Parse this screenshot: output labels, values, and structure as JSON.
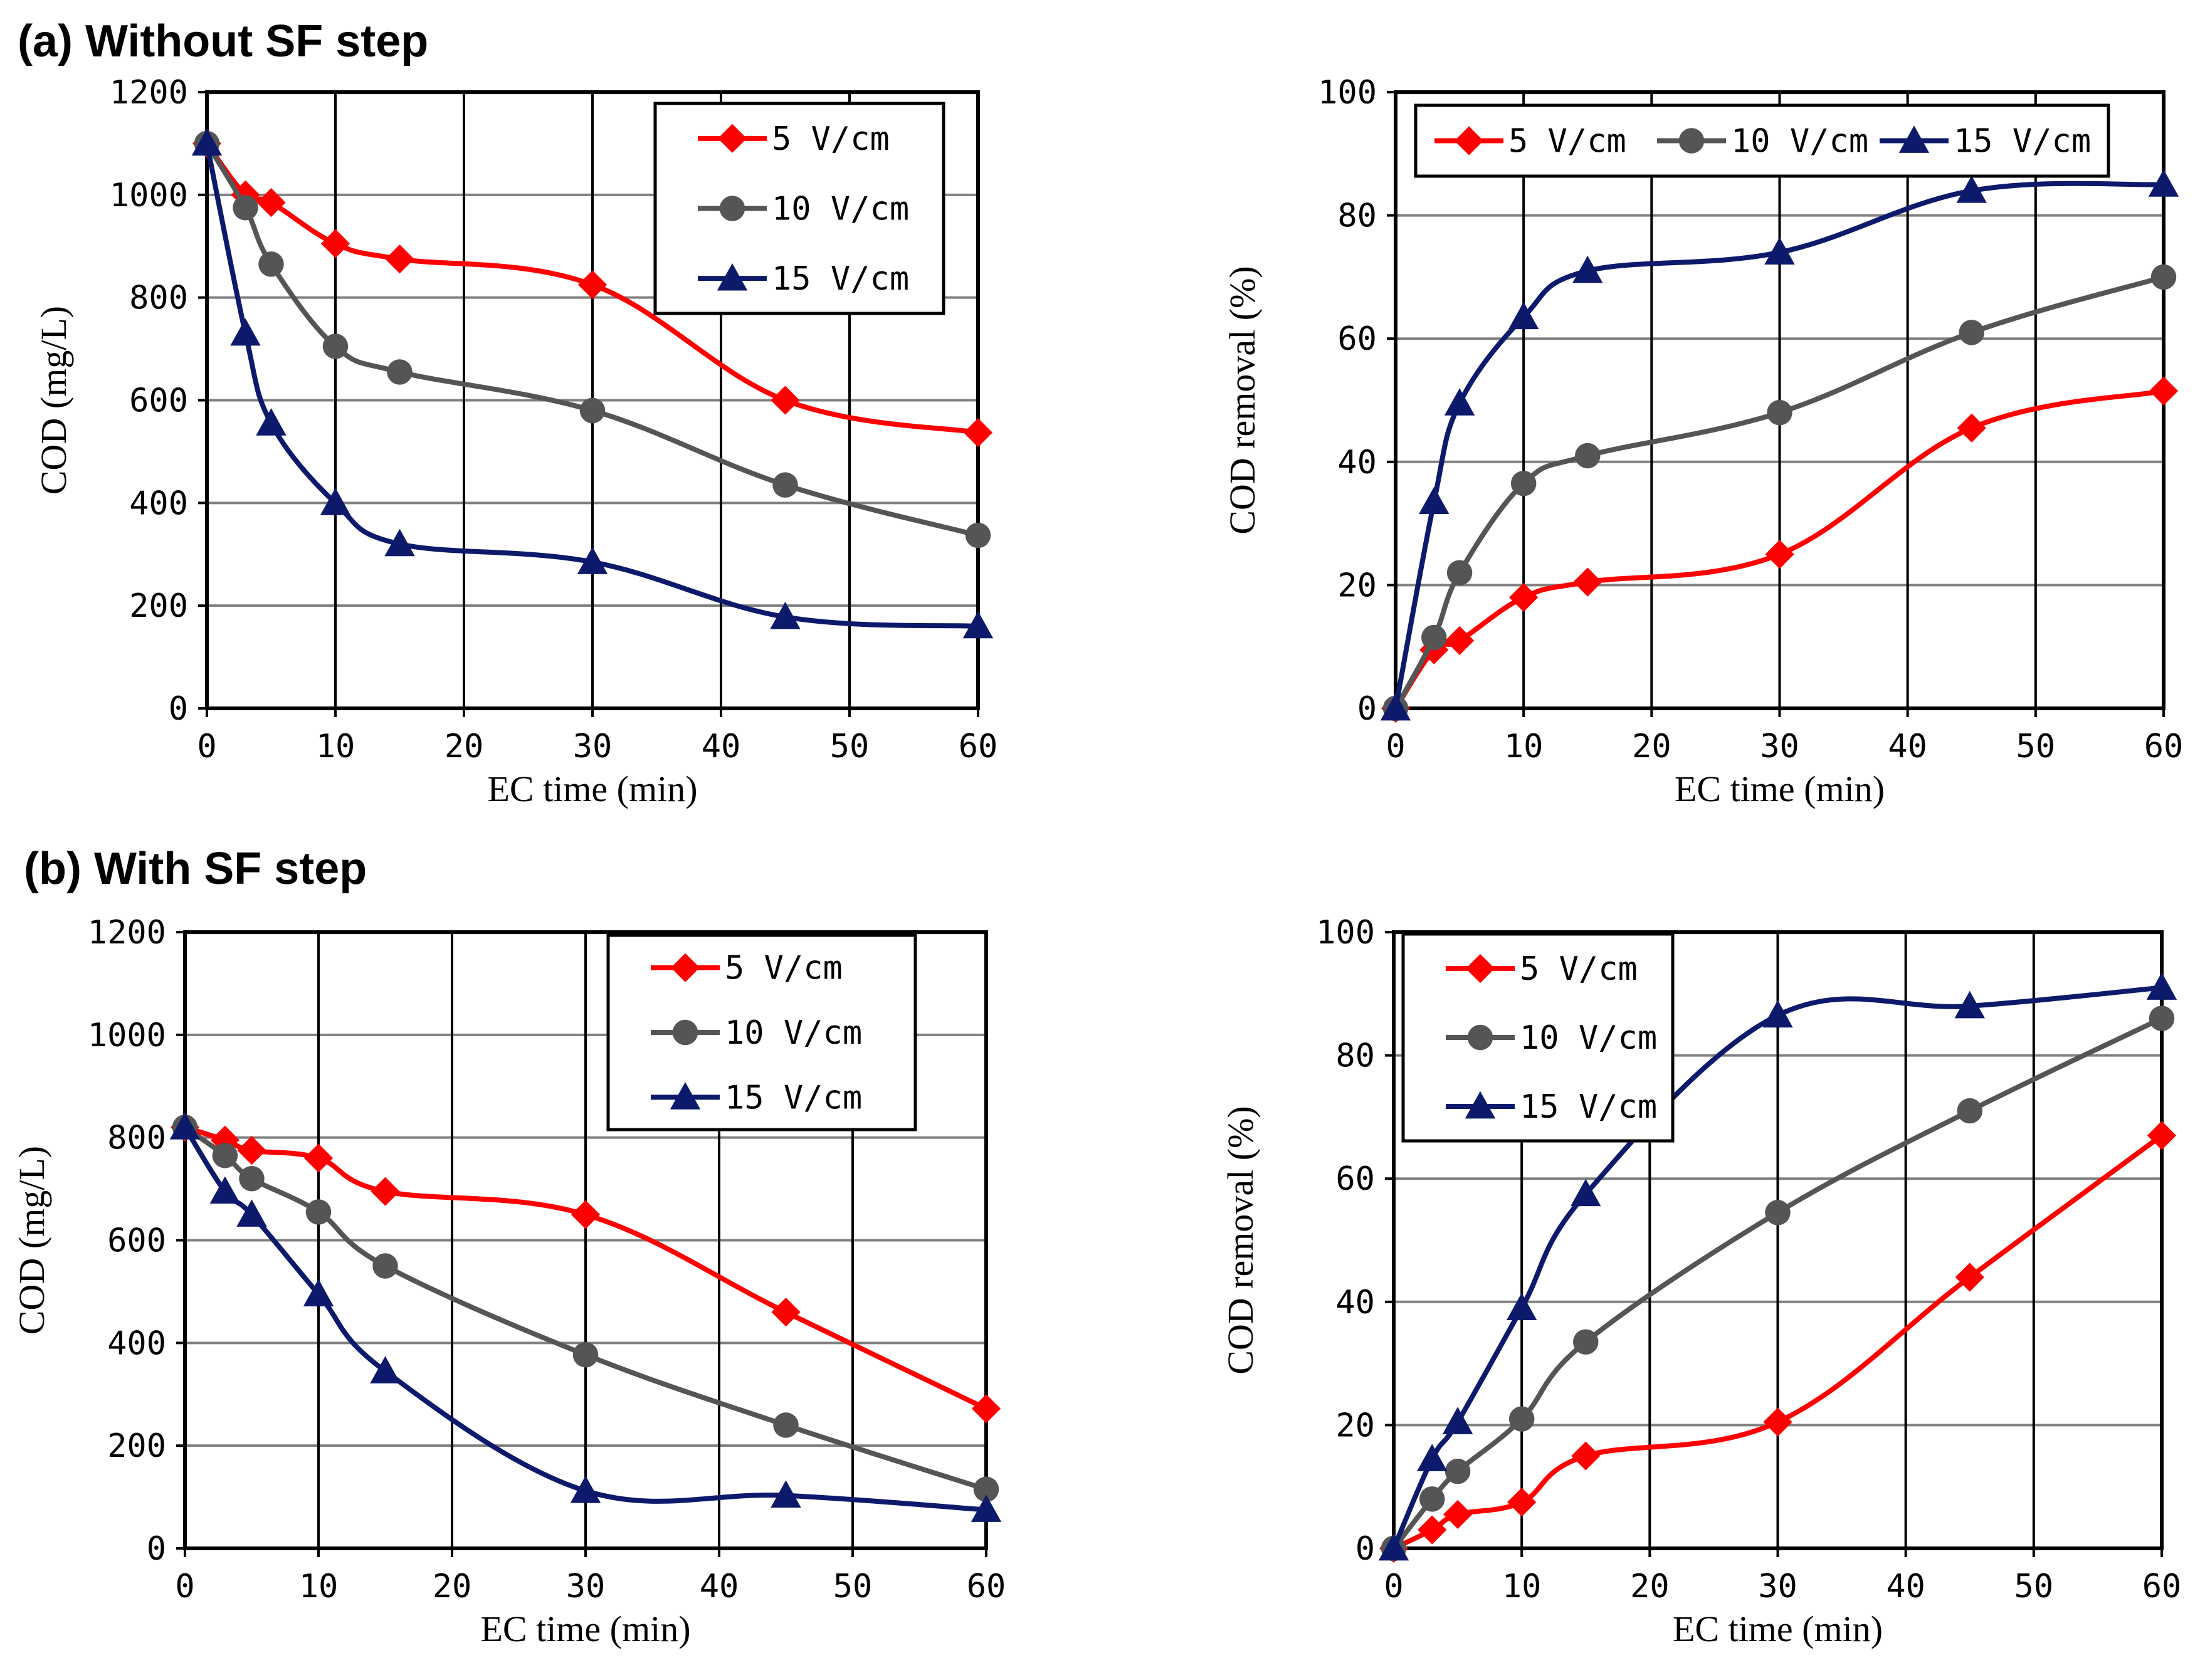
{
  "figure": {
    "section_a_title": "(a) Without SF step",
    "section_b_title": "(b) With SF step"
  },
  "colors": {
    "series_5": "#ff0000",
    "series_10": "#555555",
    "series_15": "#0d1a6b",
    "grid": "#808080",
    "frame": "#000000"
  },
  "chart_data": [
    {
      "id": "a-cod",
      "type": "line",
      "xlabel": "EC time (min)",
      "ylabel": "COD (mg/L)",
      "xlim": [
        0,
        60
      ],
      "ylim": [
        0,
        1200
      ],
      "xticks": [
        0,
        10,
        20,
        30,
        40,
        50,
        60
      ],
      "yticks": [
        0,
        200,
        400,
        600,
        800,
        1000,
        1200
      ],
      "grid": "both",
      "legend_position": "top-right",
      "legend_layout": "vertical",
      "series": [
        {
          "name": "5 V/cm",
          "marker": "diamond",
          "color": "#ff0000",
          "x": [
            0,
            3,
            5,
            10,
            15,
            30,
            45,
            60
          ],
          "y": [
            1100,
            1000,
            985,
            905,
            875,
            825,
            600,
            537
          ]
        },
        {
          "name": "10 V/cm",
          "marker": "circle",
          "color": "#555555",
          "x": [
            0,
            3,
            5,
            10,
            15,
            30,
            45,
            60
          ],
          "y": [
            1100,
            975,
            865,
            705,
            655,
            580,
            435,
            337
          ]
        },
        {
          "name": "15 V/cm",
          "marker": "triangle",
          "color": "#0d1a6b",
          "x": [
            0,
            3,
            5,
            10,
            15,
            30,
            45,
            60
          ],
          "y": [
            1100,
            730,
            555,
            400,
            320,
            285,
            178,
            160
          ]
        }
      ]
    },
    {
      "id": "a-removal",
      "type": "line",
      "xlabel": "EC time (min)",
      "ylabel": "COD removal (%)",
      "xlim": [
        0,
        60
      ],
      "ylim": [
        0,
        100
      ],
      "xticks": [
        0,
        10,
        20,
        30,
        40,
        50,
        60
      ],
      "yticks": [
        0,
        20,
        40,
        60,
        80,
        100
      ],
      "grid": "both",
      "legend_position": "top",
      "legend_layout": "horizontal",
      "series": [
        {
          "name": "5 V/cm",
          "marker": "diamond",
          "color": "#ff0000",
          "x": [
            0,
            3,
            5,
            10,
            15,
            30,
            45,
            60
          ],
          "y": [
            0,
            9.5,
            11,
            18,
            20.5,
            25,
            45.5,
            51.5
          ]
        },
        {
          "name": "10 V/cm",
          "marker": "circle",
          "color": "#555555",
          "x": [
            0,
            3,
            5,
            10,
            15,
            30,
            45,
            60
          ],
          "y": [
            0,
            11.5,
            22,
            36.5,
            41,
            48,
            61,
            70
          ]
        },
        {
          "name": "15 V/cm",
          "marker": "triangle",
          "color": "#0d1a6b",
          "x": [
            0,
            3,
            5,
            10,
            15,
            30,
            45,
            60
          ],
          "y": [
            0,
            33.5,
            49.5,
            63.5,
            71,
            74,
            84,
            85
          ]
        }
      ]
    },
    {
      "id": "b-cod",
      "type": "line",
      "xlabel": "EC time (min)",
      "ylabel": "COD (mg/L)",
      "xlim": [
        0,
        60
      ],
      "ylim": [
        0,
        1200
      ],
      "xticks": [
        0,
        10,
        20,
        30,
        40,
        50,
        60
      ],
      "yticks": [
        0,
        200,
        400,
        600,
        800,
        1000,
        1200
      ],
      "grid": "both",
      "legend_position": "top-right",
      "legend_layout": "vertical",
      "series": [
        {
          "name": "5 V/cm",
          "marker": "diamond",
          "color": "#ff0000",
          "x": [
            0,
            3,
            5,
            10,
            15,
            30,
            45,
            60
          ],
          "y": [
            820,
            795,
            775,
            760,
            695,
            650,
            460,
            272
          ]
        },
        {
          "name": "10 V/cm",
          "marker": "circle",
          "color": "#555555",
          "x": [
            0,
            3,
            5,
            10,
            15,
            30,
            45,
            60
          ],
          "y": [
            820,
            765,
            720,
            655,
            550,
            377,
            240,
            115
          ]
        },
        {
          "name": "15 V/cm",
          "marker": "triangle",
          "color": "#0d1a6b",
          "x": [
            0,
            3,
            5,
            10,
            15,
            30,
            45,
            60
          ],
          "y": [
            820,
            695,
            650,
            495,
            345,
            112,
            103,
            75
          ]
        }
      ]
    },
    {
      "id": "b-removal",
      "type": "line",
      "xlabel": "EC time (min)",
      "ylabel": "COD removal (%)",
      "xlim": [
        0,
        60
      ],
      "ylim": [
        0,
        100
      ],
      "xticks": [
        0,
        10,
        20,
        30,
        40,
        50,
        60
      ],
      "yticks": [
        0,
        20,
        40,
        60,
        80,
        100
      ],
      "grid": "both",
      "legend_position": "top-left",
      "legend_layout": "vertical",
      "series": [
        {
          "name": "5 V/cm",
          "marker": "diamond",
          "color": "#ff0000",
          "x": [
            0,
            3,
            5,
            10,
            15,
            30,
            45,
            60
          ],
          "y": [
            0,
            3,
            5.5,
            7.5,
            15,
            20.5,
            44,
            67
          ]
        },
        {
          "name": "10 V/cm",
          "marker": "circle",
          "color": "#555555",
          "x": [
            0,
            3,
            5,
            10,
            15,
            30,
            45,
            60
          ],
          "y": [
            0,
            8,
            12.5,
            21,
            33.5,
            54.5,
            71,
            86
          ]
        },
        {
          "name": "15 V/cm",
          "marker": "triangle",
          "color": "#0d1a6b",
          "x": [
            0,
            3,
            5,
            10,
            15,
            30,
            45,
            60
          ],
          "y": [
            0,
            14.5,
            20.5,
            39,
            57.5,
            86.5,
            88,
            91
          ]
        }
      ]
    }
  ]
}
